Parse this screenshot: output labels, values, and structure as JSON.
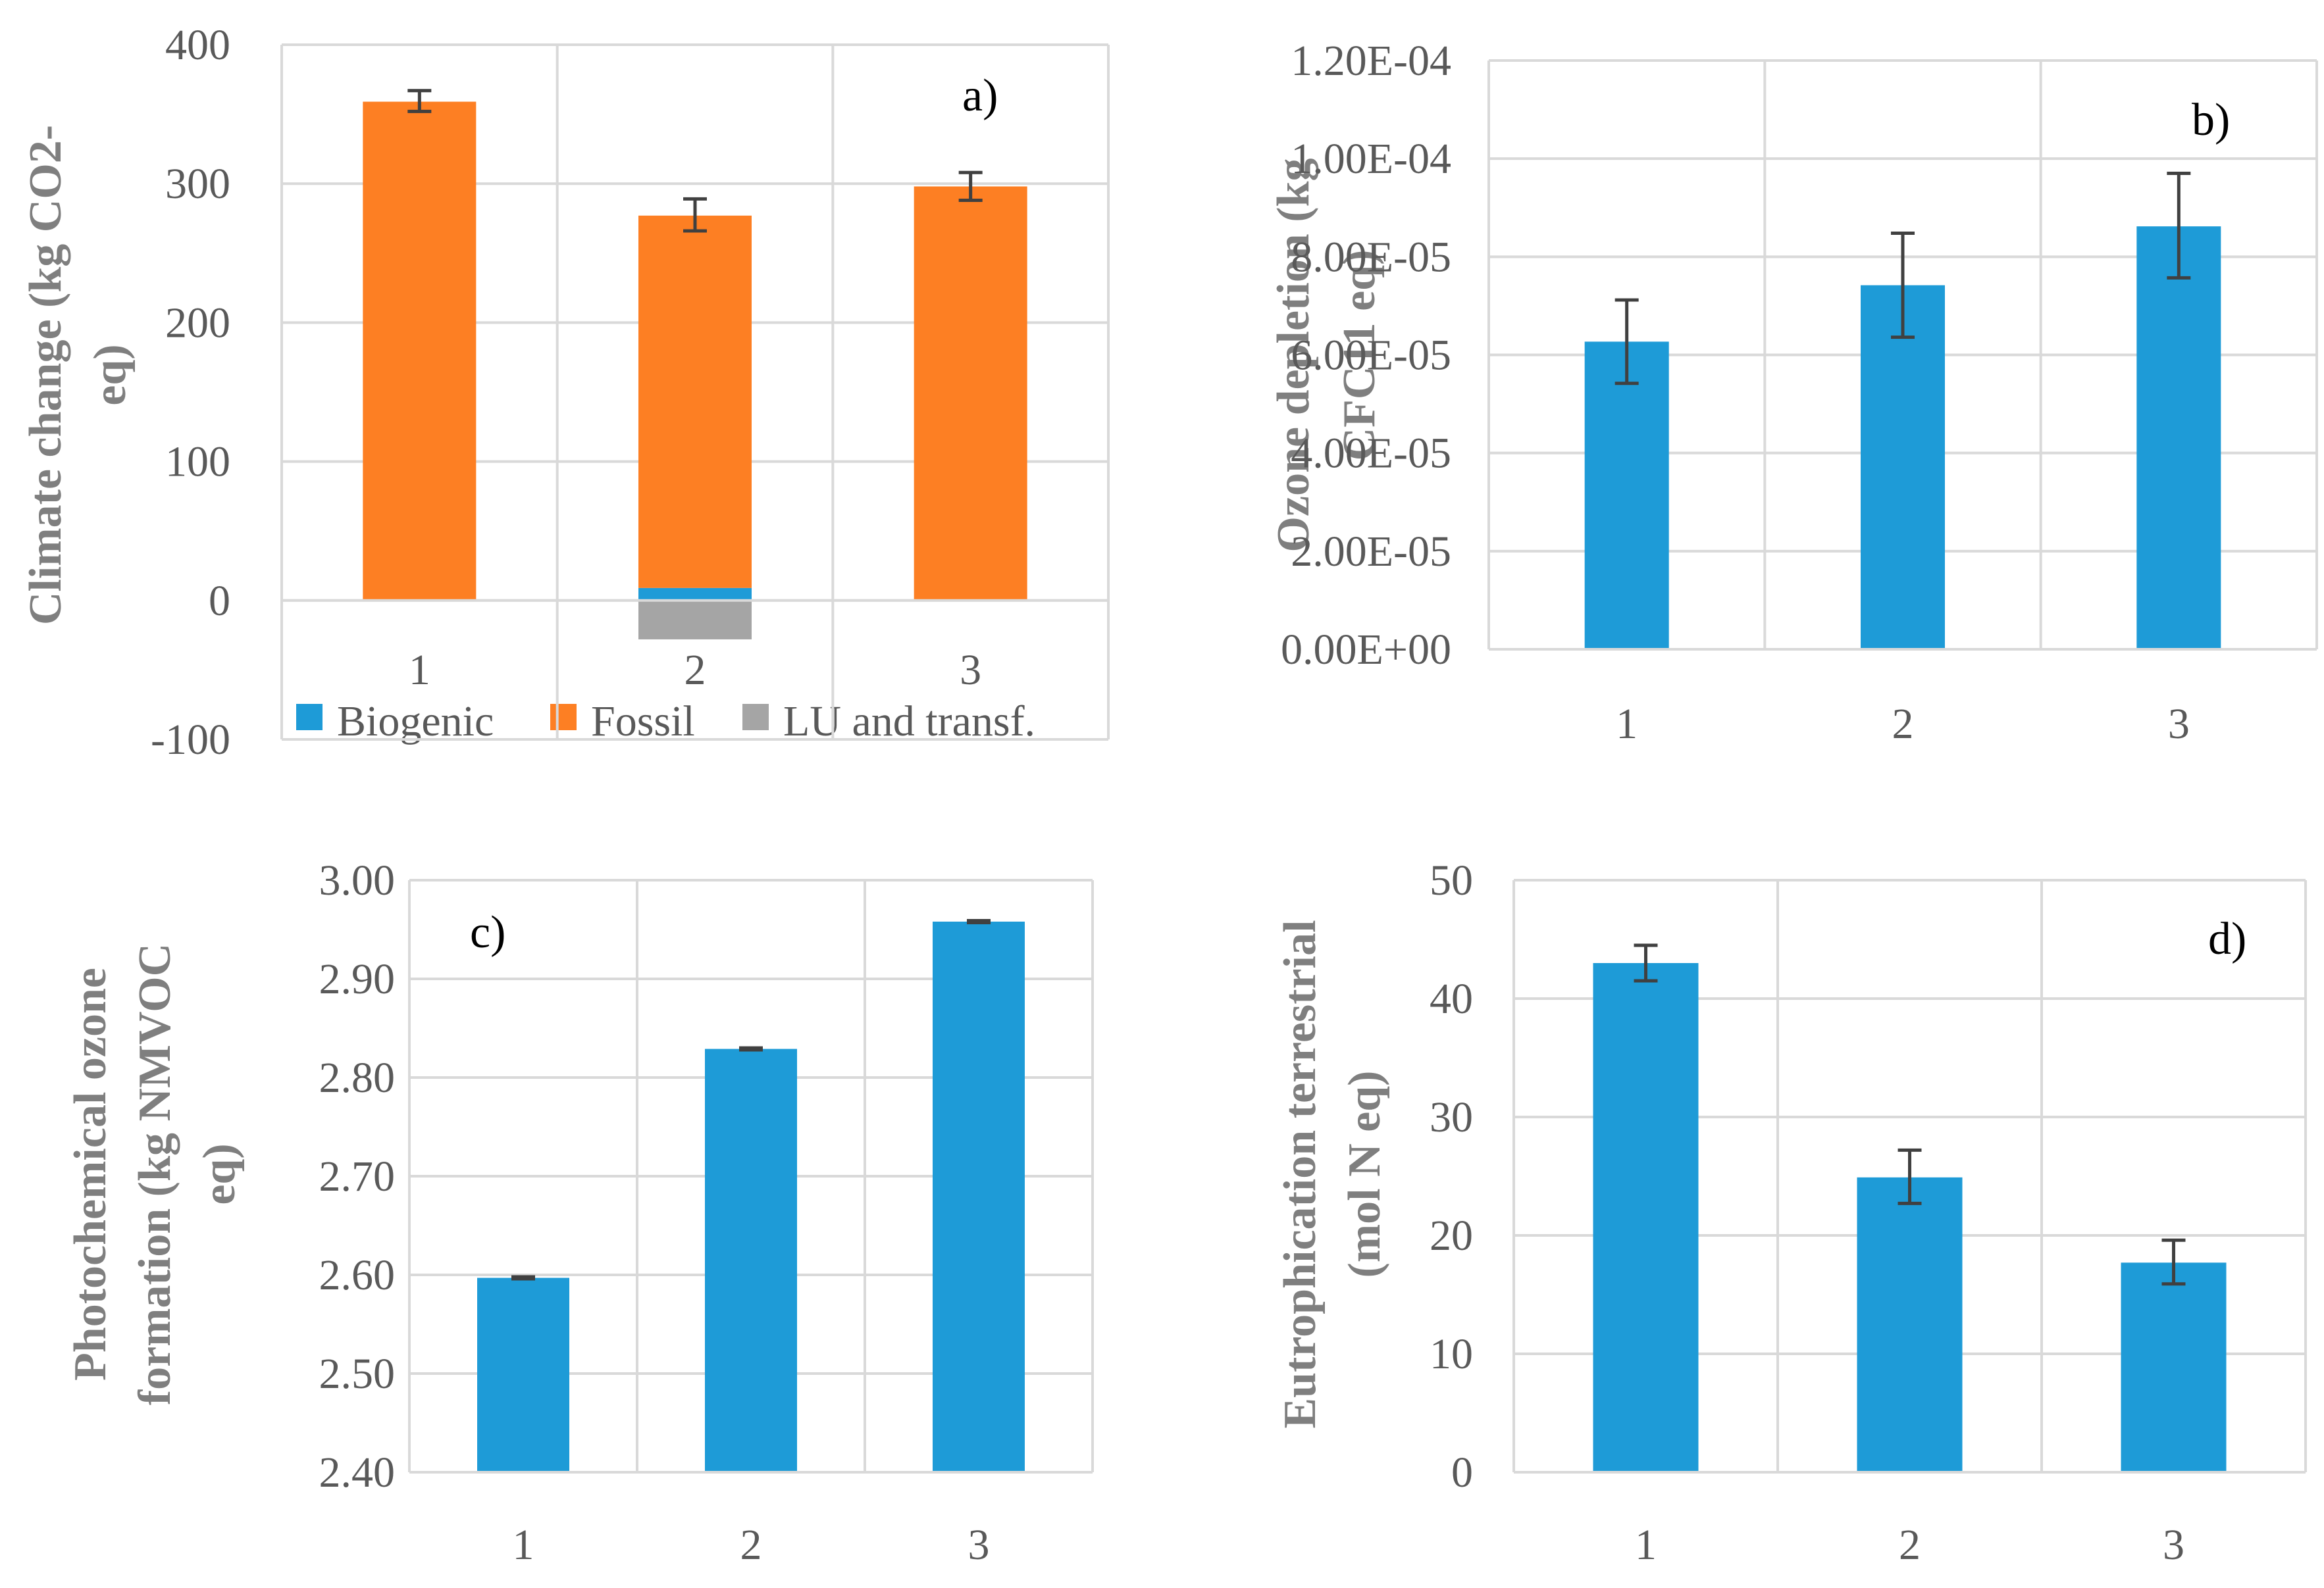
{
  "colors": {
    "biogenic": "#1e9bd7",
    "fossil": "#fd7f23",
    "lu": "#a5a5a5",
    "bar": "#1e9bd7",
    "grid": "#d9d9d9",
    "errorbar": "#404040"
  },
  "chart_data": [
    {
      "type": "bar",
      "stacked": true,
      "panel_label": "a)",
      "categories": [
        "1",
        "2",
        "3"
      ],
      "ylabel_lines": [
        "Climate change (kg CO2-",
        "eq)"
      ],
      "ylim": [
        -100,
        400
      ],
      "yticks": [
        -100,
        0,
        100,
        200,
        300,
        400
      ],
      "ytick_labels": [
        "-100",
        "0",
        "100",
        "200",
        "300",
        "400"
      ],
      "grid": true,
      "legend_position": "bottom",
      "series": [
        {
          "name": "Biogenic",
          "values": [
            0,
            9,
            0
          ],
          "color_key": "biogenic"
        },
        {
          "name": "Fossil",
          "values": [
            359,
            268,
            298
          ],
          "color_key": "fossil"
        },
        {
          "name": "LU and transf.",
          "values": [
            0,
            -28,
            0
          ],
          "color_key": "lu"
        }
      ],
      "error_bars": [
        {
          "center": 359,
          "low": 352,
          "high": 367
        },
        {
          "center": 277,
          "low": 266,
          "high": 289
        },
        {
          "center": 298,
          "low": 288,
          "high": 308
        }
      ]
    },
    {
      "type": "bar",
      "panel_label": "b)",
      "categories": [
        "1",
        "2",
        "3"
      ],
      "ylabel_lines": [
        "Ozone depletion (kg",
        "CFC11 eq)"
      ],
      "ylim": [
        0,
        0.00012
      ],
      "yticks": [
        0,
        2e-05,
        4e-05,
        6e-05,
        8e-05,
        0.0001,
        0.00012
      ],
      "ytick_labels": [
        "0.00E+00",
        "2.00E-05",
        "4.00E-05",
        "6.00E-05",
        "8.00E-05",
        "1.00E-04",
        "1.20E-04"
      ],
      "grid": true,
      "values": [
        6.27e-05,
        7.42e-05,
        8.62e-05
      ],
      "error_bars": [
        {
          "low": 5.42e-05,
          "high": 7.12e-05
        },
        {
          "low": 6.36e-05,
          "high": 8.48e-05
        },
        {
          "low": 7.57e-05,
          "high": 9.7e-05
        }
      ]
    },
    {
      "type": "bar",
      "panel_label": "c)",
      "categories": [
        "1",
        "2",
        "3"
      ],
      "ylabel_lines": [
        "Photochemical ozone",
        "formation (kg NMVOC",
        "eq)"
      ],
      "ylim": [
        2.4,
        3.0
      ],
      "yticks": [
        2.4,
        2.5,
        2.6,
        2.7,
        2.8,
        2.9,
        3.0
      ],
      "ytick_labels": [
        "2.40",
        "2.50",
        "2.60",
        "2.70",
        "2.80",
        "2.90",
        "3.00"
      ],
      "grid": true,
      "values": [
        2.597,
        2.829,
        2.958
      ],
      "error_bars": [
        {
          "low": 2.596,
          "high": 2.598
        },
        {
          "low": 2.828,
          "high": 2.83
        },
        {
          "low": 2.957,
          "high": 2.959
        }
      ]
    },
    {
      "type": "bar",
      "panel_label": "d)",
      "categories": [
        "1",
        "2",
        "3"
      ],
      "ylabel_lines": [
        "Eutrophication terrestrial",
        "(mol N eq)"
      ],
      "ylim": [
        0,
        50
      ],
      "yticks": [
        0,
        10,
        20,
        30,
        40,
        50
      ],
      "ytick_labels": [
        "0",
        "10",
        "20",
        "30",
        "40",
        "50"
      ],
      "grid": true,
      "values": [
        43.0,
        24.9,
        17.7
      ],
      "error_bars": [
        {
          "low": 41.5,
          "high": 44.5
        },
        {
          "low": 22.7,
          "high": 27.2
        },
        {
          "low": 15.9,
          "high": 19.6
        }
      ]
    }
  ]
}
